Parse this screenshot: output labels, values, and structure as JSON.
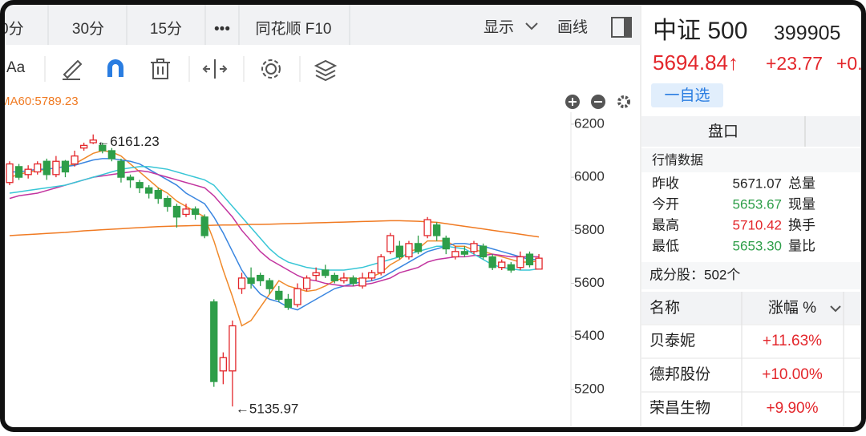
{
  "toolbar": {
    "tabs": [
      "0分",
      "30分",
      "15分",
      "•••",
      "同花顺 F10"
    ],
    "display": "显示",
    "draw": "画线",
    "font_tool": "Aa"
  },
  "chart_data": {
    "type": "candlestick",
    "indicator_label": "MA60:5789.23",
    "open": [
      5980,
      6040,
      6010,
      6020,
      6060,
      6010,
      6060,
      6050,
      6110,
      6130,
      6120,
      6100,
      6060,
      6000,
      5980,
      5960,
      5950,
      5920,
      5890,
      5860,
      5880,
      5850,
      5530,
      5270,
      5270,
      5580,
      5620,
      5630,
      5610,
      5570,
      5540,
      5520,
      5580,
      5630,
      5650,
      5630,
      5610,
      5620,
      5590,
      5620,
      5640,
      5720,
      5740,
      5700,
      5750,
      5780,
      5820,
      5770,
      5700,
      5720,
      5720,
      5740,
      5700,
      5660,
      5670,
      5660,
      5710,
      5653.67
    ],
    "close": [
      6050,
      6000,
      6030,
      6050,
      6010,
      6060,
      6020,
      6080,
      6120,
      6140,
      6100,
      6070,
      6000,
      5990,
      5960,
      5940,
      5920,
      5890,
      5850,
      5880,
      5860,
      5780,
      5230,
      5320,
      5440,
      5620,
      5600,
      5610,
      5580,
      5540,
      5510,
      5580,
      5620,
      5640,
      5630,
      5610,
      5620,
      5600,
      5620,
      5640,
      5700,
      5780,
      5700,
      5750,
      5720,
      5840,
      5780,
      5730,
      5720,
      5710,
      5750,
      5700,
      5660,
      5680,
      5650,
      5700,
      5670,
      5694.84
    ],
    "high": [
      6060,
      6050,
      6045,
      6060,
      6070,
      6080,
      6065,
      6100,
      6130,
      6161.23,
      6130,
      6110,
      6070,
      6010,
      5990,
      5970,
      5960,
      5930,
      5900,
      5900,
      5890,
      5860,
      5540,
      5340,
      5460,
      5640,
      5660,
      5640,
      5620,
      5590,
      5560,
      5600,
      5630,
      5660,
      5670,
      5640,
      5640,
      5630,
      5640,
      5650,
      5710,
      5790,
      5760,
      5760,
      5780,
      5850,
      5830,
      5780,
      5740,
      5740,
      5760,
      5750,
      5710,
      5690,
      5680,
      5720,
      5720,
      5710.42
    ],
    "low": [
      5970,
      5990,
      5995,
      6010,
      5990,
      6000,
      6000,
      6040,
      6100,
      6125,
      6090,
      6060,
      5980,
      5960,
      5940,
      5920,
      5900,
      5870,
      5810,
      5850,
      5840,
      5770,
      5210,
      5220,
      5135.97,
      5560,
      5580,
      5590,
      5560,
      5530,
      5500,
      5510,
      5570,
      5610,
      5620,
      5600,
      5600,
      5590,
      5580,
      5610,
      5630,
      5710,
      5690,
      5690,
      5710,
      5770,
      5760,
      5710,
      5690,
      5700,
      5710,
      5690,
      5650,
      5650,
      5640,
      5650,
      5660,
      5653.3
    ],
    "up_color": "#e3262b",
    "down_color": "#2e9e49",
    "lines": [
      {
        "color": "#f0892a",
        "values": [
          6000,
          6010,
          6020,
          6025,
          6030,
          6035,
          6040,
          6050,
          6070,
          6090,
          6100,
          6095,
          6080,
          6050,
          6020,
          5990,
          5960,
          5940,
          5910,
          5890,
          5870,
          5850,
          5760,
          5650,
          5550,
          5440,
          5460,
          5510,
          5560,
          5610,
          5590,
          5580,
          5570,
          5575,
          5590,
          5610,
          5620,
          5620,
          5615,
          5625,
          5640,
          5670,
          5690,
          5720,
          5730,
          5760,
          5760,
          5760,
          5740,
          5740,
          5725,
          5720,
          5710,
          5700,
          5690,
          5680,
          5680,
          5685
        ]
      },
      {
        "color": "#3a86e0",
        "values": [
          6020,
          6020,
          6025,
          6030,
          6030,
          6035,
          6040,
          6045,
          6055,
          6065,
          6070,
          6070,
          6065,
          6060,
          6050,
          6030,
          6010,
          5990,
          5970,
          5940,
          5920,
          5900,
          5850,
          5790,
          5720,
          5650,
          5600,
          5560,
          5540,
          5530,
          5510,
          5500,
          5520,
          5540,
          5560,
          5580,
          5590,
          5600,
          5605,
          5610,
          5620,
          5640,
          5660,
          5680,
          5700,
          5720,
          5730,
          5740,
          5750,
          5750,
          5745,
          5740,
          5730,
          5720,
          5710,
          5700,
          5690,
          5690
        ]
      },
      {
        "color": "#c2349f",
        "values": [
          5920,
          5930,
          5935,
          5940,
          5950,
          5960,
          5970,
          5980,
          5990,
          6000,
          6005,
          6010,
          6015,
          6020,
          6025,
          6020,
          6010,
          6000,
          5990,
          5980,
          5970,
          5960,
          5930,
          5890,
          5850,
          5800,
          5760,
          5720,
          5690,
          5670,
          5650,
          5630,
          5615,
          5610,
          5600,
          5595,
          5590,
          5590,
          5595,
          5600,
          5610,
          5620,
          5640,
          5650,
          5660,
          5680,
          5690,
          5695,
          5700,
          5700,
          5705,
          5705,
          5710,
          5705,
          5700,
          5700,
          5700,
          5700
        ]
      },
      {
        "color": "#38c6d6",
        "values": [
          5940,
          5945,
          5950,
          5955,
          5960,
          5965,
          5970,
          5980,
          5990,
          6000,
          6010,
          6020,
          6030,
          6035,
          6040,
          6040,
          6035,
          6030,
          6020,
          6010,
          6000,
          5990,
          5970,
          5930,
          5890,
          5850,
          5810,
          5770,
          5730,
          5700,
          5680,
          5670,
          5660,
          5655,
          5650,
          5650,
          5650,
          5655,
          5660,
          5670,
          5680,
          5690,
          5700,
          5710,
          5720,
          5730,
          5740,
          5740,
          5735,
          5730,
          5710,
          5690,
          5670,
          5660,
          5655,
          5650,
          5650,
          5655
        ]
      },
      {
        "color": "#f07a22",
        "values": [
          5780,
          5782,
          5784,
          5786,
          5788,
          5790,
          5792,
          5795,
          5798,
          5800,
          5802,
          5804,
          5806,
          5808,
          5810,
          5812,
          5814,
          5815,
          5816,
          5817,
          5818,
          5818,
          5819,
          5820,
          5820,
          5821,
          5822,
          5822,
          5823,
          5824,
          5825,
          5826,
          5827,
          5828,
          5829,
          5830,
          5831,
          5832,
          5833,
          5834,
          5835,
          5836,
          5836,
          5835,
          5834,
          5832,
          5830,
          5825,
          5820,
          5815,
          5810,
          5805,
          5800,
          5795,
          5790,
          5785,
          5780,
          5775
        ]
      }
    ],
    "annotations": [
      "←6161.23",
      "←5135.97"
    ],
    "ylim": [
      5067,
      6245
    ],
    "yticks": [
      5200,
      5400,
      5600,
      5800,
      6000,
      6200
    ]
  },
  "panel": {
    "name": "中证 500",
    "code": "399905",
    "price": "5694.84↑",
    "change": "+23.77",
    "change_pct": "+0.",
    "watch": "一自选",
    "tab": "盘口",
    "section": "行情数据",
    "stats": [
      [
        "昨收",
        "5671.07",
        "总量"
      ],
      [
        "今开",
        "5653.67",
        "现量"
      ],
      [
        "最高",
        "5710.42",
        "换手"
      ],
      [
        "最低",
        "5653.30",
        "量比"
      ]
    ],
    "constituents": "成分股：502个",
    "table": {
      "header": [
        "名称",
        "涨幅 %"
      ],
      "rows": [
        [
          "贝泰妮",
          "+11.63%"
        ],
        [
          "德邦股份",
          "+10.00%"
        ],
        [
          "荣昌生物",
          "+9.90%"
        ]
      ]
    }
  }
}
